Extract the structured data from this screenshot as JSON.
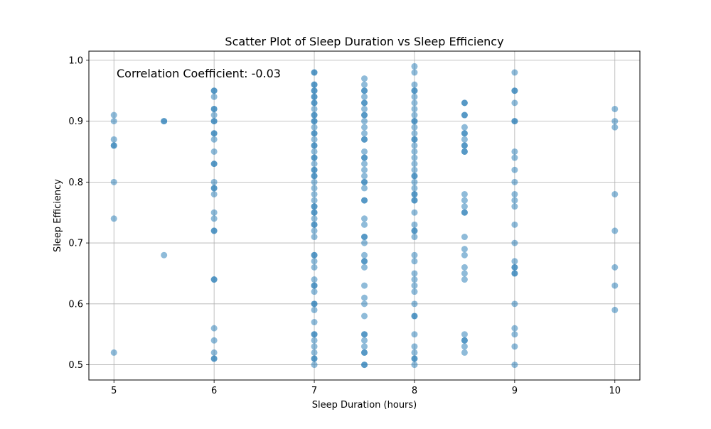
{
  "chart_data": {
    "type": "scatter",
    "title": "Scatter Plot of Sleep Duration vs Sleep Efficiency",
    "xlabel": "Sleep Duration (hours)",
    "ylabel": "Sleep Efficiency",
    "annotation": "Correlation Coefficient: -0.03",
    "xlim": [
      4.75,
      10.25
    ],
    "ylim": [
      0.475,
      1.015
    ],
    "xticks": [
      5,
      6,
      7,
      8,
      9,
      10
    ],
    "xtick_labels": [
      "5",
      "6",
      "7",
      "8",
      "9",
      "10"
    ],
    "yticks": [
      0.5,
      0.6,
      0.7,
      0.8,
      0.9,
      1.0
    ],
    "ytick_labels": [
      "0.5",
      "0.6",
      "0.7",
      "0.8",
      "0.9",
      "1.0"
    ],
    "grid": true,
    "point_color": "#1f77b4",
    "point_alpha": 0.5,
    "points": [
      {
        "x": 5,
        "y": [
          0.91,
          0.9,
          0.87,
          0.86,
          0.86,
          0.8,
          0.74,
          0.52
        ]
      },
      {
        "x": 5.5,
        "y": [
          0.9,
          0.9,
          0.68
        ]
      },
      {
        "x": 6,
        "y": [
          0.95,
          0.95,
          0.94,
          0.92,
          0.92,
          0.91,
          0.9,
          0.9,
          0.88,
          0.88,
          0.87,
          0.85,
          0.83,
          0.83,
          0.8,
          0.79,
          0.79,
          0.78,
          0.75,
          0.74,
          0.72,
          0.72,
          0.64,
          0.64,
          0.56,
          0.54,
          0.52,
          0.51,
          0.51
        ]
      },
      {
        "x": 7,
        "y": [
          0.98,
          0.98,
          0.96,
          0.96,
          0.95,
          0.95,
          0.94,
          0.94,
          0.93,
          0.93,
          0.92,
          0.91,
          0.91,
          0.9,
          0.9,
          0.89,
          0.88,
          0.88,
          0.87,
          0.86,
          0.86,
          0.85,
          0.84,
          0.84,
          0.83,
          0.82,
          0.82,
          0.81,
          0.81,
          0.8,
          0.79,
          0.78,
          0.77,
          0.76,
          0.76,
          0.75,
          0.75,
          0.74,
          0.73,
          0.73,
          0.72,
          0.71,
          0.68,
          0.68,
          0.67,
          0.66,
          0.64,
          0.63,
          0.63,
          0.62,
          0.6,
          0.6,
          0.59,
          0.57,
          0.55,
          0.55,
          0.54,
          0.53,
          0.52,
          0.51,
          0.51,
          0.5
        ]
      },
      {
        "x": 7.5,
        "y": [
          0.97,
          0.96,
          0.95,
          0.95,
          0.94,
          0.93,
          0.93,
          0.92,
          0.91,
          0.91,
          0.9,
          0.89,
          0.88,
          0.87,
          0.87,
          0.85,
          0.84,
          0.84,
          0.83,
          0.82,
          0.81,
          0.8,
          0.8,
          0.79,
          0.77,
          0.77,
          0.74,
          0.73,
          0.71,
          0.71,
          0.7,
          0.68,
          0.67,
          0.67,
          0.66,
          0.63,
          0.61,
          0.6,
          0.58,
          0.55,
          0.55,
          0.54,
          0.53,
          0.52,
          0.52,
          0.5,
          0.5
        ]
      },
      {
        "x": 8,
        "y": [
          0.99,
          0.98,
          0.96,
          0.95,
          0.95,
          0.94,
          0.93,
          0.92,
          0.91,
          0.9,
          0.9,
          0.89,
          0.88,
          0.87,
          0.87,
          0.86,
          0.85,
          0.84,
          0.83,
          0.82,
          0.81,
          0.81,
          0.8,
          0.79,
          0.78,
          0.78,
          0.77,
          0.77,
          0.75,
          0.73,
          0.72,
          0.72,
          0.71,
          0.68,
          0.67,
          0.65,
          0.64,
          0.63,
          0.62,
          0.6,
          0.58,
          0.58,
          0.55,
          0.53,
          0.52,
          0.51,
          0.51,
          0.5
        ]
      },
      {
        "x": 8.5,
        "y": [
          0.93,
          0.93,
          0.91,
          0.91,
          0.89,
          0.88,
          0.88,
          0.87,
          0.86,
          0.86,
          0.85,
          0.85,
          0.78,
          0.77,
          0.76,
          0.75,
          0.75,
          0.71,
          0.69,
          0.68,
          0.66,
          0.65,
          0.64,
          0.55,
          0.54,
          0.54,
          0.53,
          0.52
        ]
      },
      {
        "x": 9,
        "y": [
          0.98,
          0.95,
          0.95,
          0.93,
          0.9,
          0.9,
          0.85,
          0.84,
          0.82,
          0.8,
          0.78,
          0.77,
          0.76,
          0.73,
          0.7,
          0.67,
          0.66,
          0.66,
          0.65,
          0.65,
          0.6,
          0.56,
          0.55,
          0.53,
          0.5
        ]
      },
      {
        "x": 10,
        "y": [
          0.92,
          0.9,
          0.89,
          0.78,
          0.72,
          0.66,
          0.63,
          0.59
        ]
      }
    ]
  }
}
